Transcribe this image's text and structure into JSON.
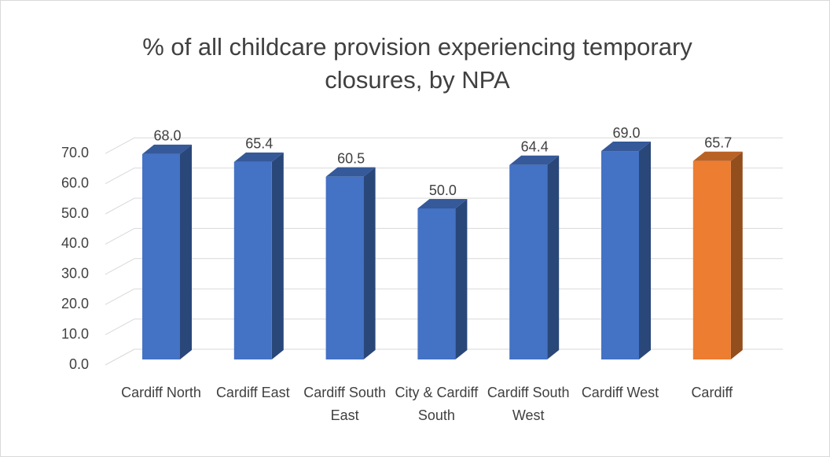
{
  "chart_data": {
    "type": "bar3d",
    "title": "% of all childcare provision experiencing temporary closures, by NPA",
    "categories": [
      "Cardiff North",
      "Cardiff East",
      "Cardiff South East",
      "City & Cardiff South",
      "Cardiff South West",
      "Cardiff West",
      "Cardiff"
    ],
    "values": [
      68.0,
      65.4,
      60.5,
      50.0,
      64.4,
      69.0,
      65.7
    ],
    "value_labels": [
      "68.0",
      "65.4",
      "60.5",
      "50.0",
      "64.4",
      "69.0",
      "65.7"
    ],
    "colors": [
      "#4472c4",
      "#4472c4",
      "#4472c4",
      "#4472c4",
      "#4472c4",
      "#4472c4",
      "#ed7d31"
    ],
    "ylim": [
      0,
      70
    ],
    "yticks": [
      {
        "value": 0,
        "label": "0.0"
      },
      {
        "value": 10,
        "label": "10.0"
      },
      {
        "value": 20,
        "label": "20.0"
      },
      {
        "value": 30,
        "label": "30.0"
      },
      {
        "value": 40,
        "label": "40.0"
      },
      {
        "value": 50,
        "label": "50.0"
      },
      {
        "value": 60,
        "label": "60.0"
      },
      {
        "value": 70,
        "label": "70.0"
      }
    ],
    "grid": true
  }
}
